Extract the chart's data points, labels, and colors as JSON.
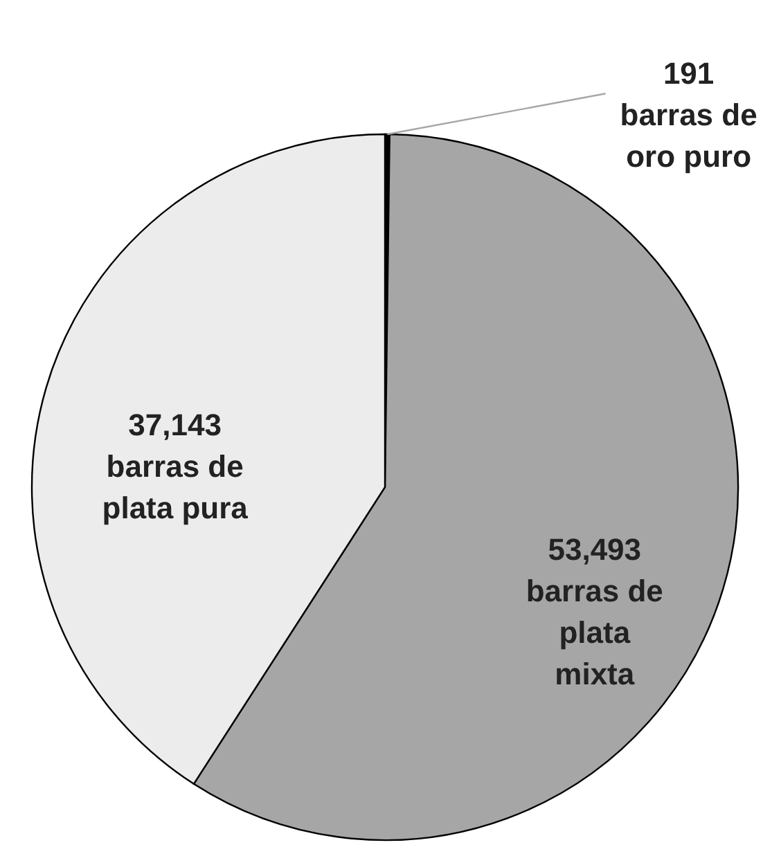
{
  "chart_data": {
    "type": "pie",
    "categories": [
      "barras de\noro puro",
      "barras de\nplata\nmixta",
      "barras de\nplata pura"
    ],
    "values": [
      191,
      53493,
      37143
    ],
    "value_labels": [
      "191",
      "53,493",
      "37,143"
    ],
    "colors": [
      "#000000",
      "#a6a6a6",
      "#ececec"
    ]
  }
}
